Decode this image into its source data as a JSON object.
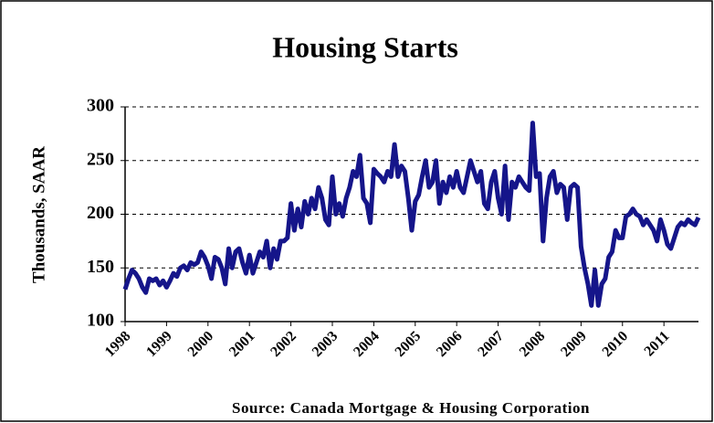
{
  "chart_data": {
    "type": "line",
    "title": "Housing Starts",
    "y_label": "Thousands, SAAR",
    "source": "Source: Canada Mortgage & Housing Corporation",
    "categories": [
      "1998",
      null,
      null,
      null,
      null,
      null,
      null,
      null,
      null,
      null,
      null,
      null,
      "1999",
      null,
      null,
      null,
      null,
      null,
      null,
      null,
      null,
      null,
      null,
      null,
      "2000",
      null,
      null,
      null,
      null,
      null,
      null,
      null,
      null,
      null,
      null,
      null,
      "2001",
      null,
      null,
      null,
      null,
      null,
      null,
      null,
      null,
      null,
      null,
      null,
      "2002",
      null,
      null,
      null,
      null,
      null,
      null,
      null,
      null,
      null,
      null,
      null,
      "2003",
      null,
      null,
      null,
      null,
      null,
      null,
      null,
      null,
      null,
      null,
      null,
      "2004",
      null,
      null,
      null,
      null,
      null,
      null,
      null,
      null,
      null,
      null,
      null,
      "2005",
      null,
      null,
      null,
      null,
      null,
      null,
      null,
      null,
      null,
      null,
      null,
      "2006",
      null,
      null,
      null,
      null,
      null,
      null,
      null,
      null,
      null,
      null,
      null,
      "2007",
      null,
      null,
      null,
      null,
      null,
      null,
      null,
      null,
      null,
      null,
      null,
      "2008",
      null,
      null,
      null,
      null,
      null,
      null,
      null,
      null,
      null,
      null,
      null,
      "2009",
      null,
      null,
      null,
      null,
      null,
      null,
      null,
      null,
      null,
      null,
      null,
      "2010",
      null,
      null,
      null,
      null,
      null,
      null,
      null,
      null,
      null,
      null,
      null,
      "2011",
      null,
      null,
      null,
      null,
      null,
      null,
      null,
      null,
      null,
      null
    ],
    "series": [
      {
        "name": "Housing Starts",
        "color": "#15158a",
        "values": [
          130,
          140,
          148,
          145,
          140,
          132,
          127,
          140,
          138,
          140,
          134,
          138,
          132,
          138,
          145,
          142,
          150,
          152,
          148,
          155,
          153,
          155,
          165,
          160,
          152,
          140,
          160,
          158,
          150,
          135,
          168,
          150,
          165,
          168,
          155,
          145,
          162,
          145,
          155,
          165,
          160,
          175,
          150,
          168,
          158,
          175,
          175,
          178,
          210,
          185,
          205,
          188,
          212,
          200,
          215,
          205,
          225,
          215,
          195,
          190,
          235,
          200,
          210,
          198,
          215,
          225,
          240,
          235,
          255,
          215,
          210,
          192,
          242,
          238,
          235,
          230,
          240,
          235,
          265,
          235,
          245,
          240,
          215,
          185,
          212,
          218,
          235,
          250,
          225,
          230,
          250,
          210,
          230,
          220,
          235,
          225,
          240,
          225,
          220,
          235,
          250,
          240,
          230,
          240,
          210,
          205,
          230,
          240,
          215,
          200,
          245,
          195,
          230,
          225,
          235,
          230,
          225,
          222,
          285,
          235,
          238,
          175,
          215,
          235,
          240,
          220,
          228,
          225,
          195,
          225,
          228,
          225,
          170,
          150,
          135,
          115,
          148,
          115,
          135,
          140,
          160,
          165,
          185,
          178,
          178,
          198,
          200,
          205,
          200,
          198,
          190,
          195,
          190,
          185,
          175,
          195,
          185,
          172,
          168,
          178,
          188,
          192,
          190,
          195,
          192,
          190,
          197
        ]
      }
    ],
    "ylim": [
      100,
      300
    ],
    "yticks": [
      100,
      150,
      200,
      250,
      300
    ],
    "grid": true
  }
}
